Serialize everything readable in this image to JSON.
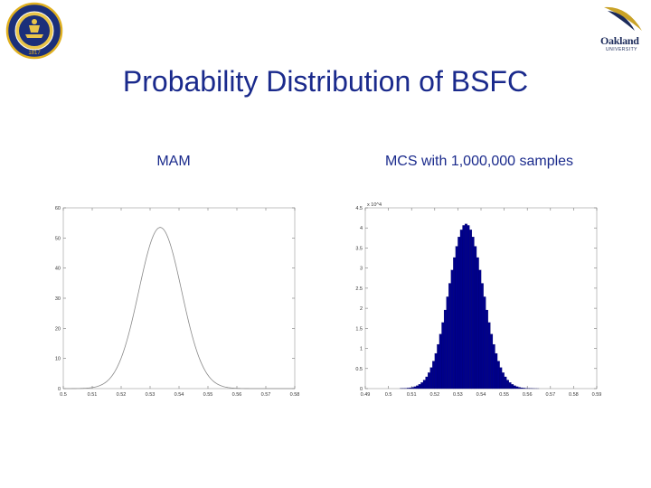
{
  "slide": {
    "title": "Probability Distribution of BSFC",
    "left_label": "MAM",
    "right_label": "MCS with 1,000,000 samples"
  },
  "logos": {
    "left": {
      "text": "THE UNIVERSITY OF MICHIGAN",
      "year": "1817",
      "color": "#1b2f7a",
      "accent": "#e0b020"
    },
    "right": {
      "text": "Oakland",
      "sub": "UNIVERSITY",
      "color": "#1b2a5a",
      "accent": "#c9a227"
    }
  },
  "chart_data": [
    {
      "type": "line",
      "title": "",
      "xlim": [
        0.5,
        0.58
      ],
      "ylim": [
        0,
        60
      ],
      "x_ticks": [
        "0.5",
        "0.51",
        "0.52",
        "0.53",
        "0.54",
        "0.55",
        "0.56",
        "0.57",
        "0.58"
      ],
      "y_ticks": [
        "0",
        "10",
        "20",
        "30",
        "40",
        "50",
        "60"
      ],
      "curve": {
        "shape": "normal",
        "mean": 0.5335,
        "std": 0.0074,
        "peak": 53.5
      },
      "color": "#888888"
    },
    {
      "type": "bar",
      "title": "",
      "xlim": [
        0.49,
        0.59
      ],
      "ylim": [
        0,
        4.5
      ],
      "y_multiplier": "x 10^4",
      "x_ticks": [
        "0.49",
        "0.5",
        "0.51",
        "0.52",
        "0.53",
        "0.54",
        "0.55",
        "0.56",
        "0.57",
        "0.58",
        "0.59"
      ],
      "y_ticks": [
        "0",
        "0.5",
        "1",
        "1.5",
        "2",
        "2.5",
        "3",
        "3.5",
        "4",
        "4.5"
      ],
      "histogram": {
        "mean": 0.5335,
        "std": 0.0074,
        "peak": 4.1,
        "bin_width": 0.001,
        "bin_range": [
          0.505,
          0.565
        ]
      },
      "color": "#00008b"
    }
  ]
}
